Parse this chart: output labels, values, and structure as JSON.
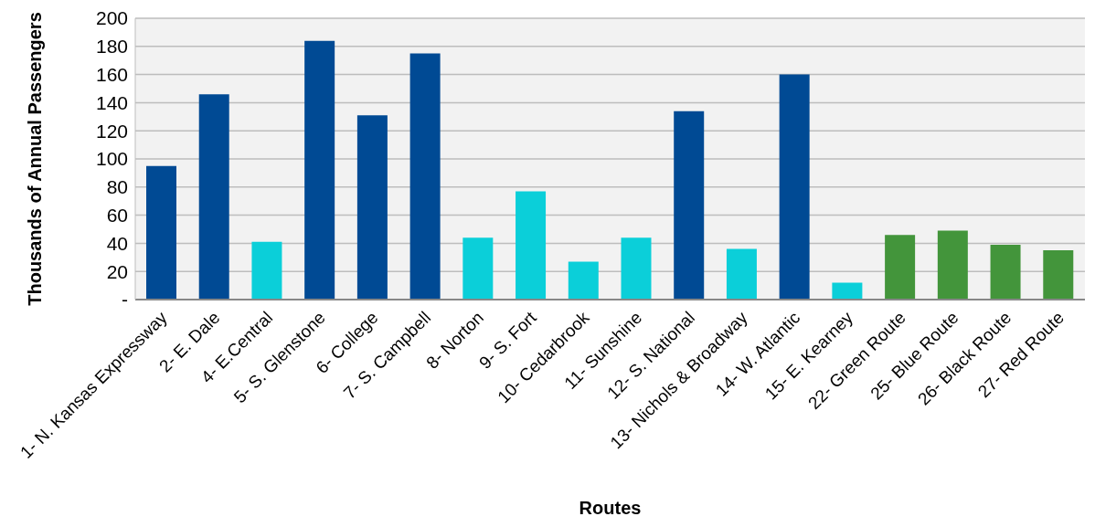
{
  "chart_data": {
    "type": "bar",
    "xlabel": "Routes",
    "ylabel": "Thousands of Annual Passengers",
    "categories": [
      "1- N. Kansas Expressway",
      "2- E. Dale",
      "4- E.Central",
      "5- S. Glenstone",
      "6- College",
      "7- S. Campbell",
      "8- Norton",
      "9- S. Fort",
      "10- Cedarbrook",
      "11- Sunshine",
      "12- S. National",
      "13- Nichols & Broadway",
      "14- W. Atlantic",
      "15- E. Kearney",
      "22- Green Route",
      "25- Blue Route",
      "26- Black Route",
      "27- Red Route"
    ],
    "values": [
      95,
      146,
      41,
      184,
      131,
      175,
      44,
      77,
      27,
      44,
      134,
      36,
      160,
      12,
      46,
      49,
      39,
      35
    ],
    "colors": [
      "#004a94",
      "#004a94",
      "#0bcfd9",
      "#004a94",
      "#004a94",
      "#004a94",
      "#0bcfd9",
      "#0bcfd9",
      "#0bcfd9",
      "#0bcfd9",
      "#004a94",
      "#0bcfd9",
      "#004a94",
      "#0bcfd9",
      "#43953b",
      "#43953b",
      "#43953b",
      "#43953b"
    ],
    "ylim": [
      0,
      200
    ],
    "yticks": [
      {
        "value": 0,
        "label": "-"
      },
      20,
      40,
      60,
      80,
      100,
      120,
      140,
      160,
      180,
      200
    ],
    "grid": "y"
  }
}
